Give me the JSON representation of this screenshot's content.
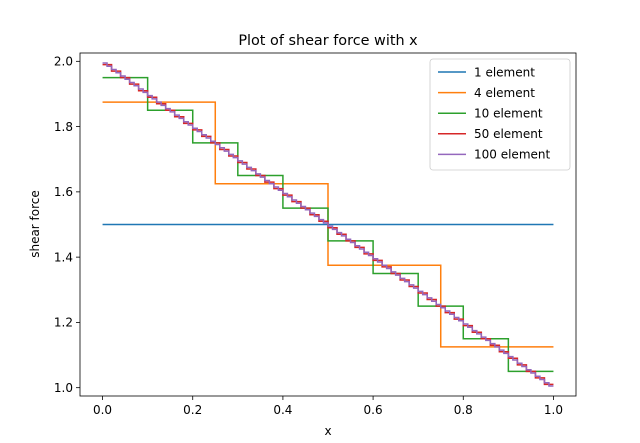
{
  "chart_data": {
    "type": "line",
    "title": "Plot of shear force with x",
    "xlabel": "x",
    "ylabel": "shear force",
    "xlim": [
      -0.05,
      1.05
    ],
    "ylim": [
      0.9745,
      2.0255
    ],
    "xticks": [
      0.0,
      0.2,
      0.4,
      0.6,
      0.8,
      1.0
    ],
    "xtick_labels": [
      "0.0",
      "0.2",
      "0.4",
      "0.6",
      "0.8",
      "1.0"
    ],
    "yticks": [
      1.0,
      1.2,
      1.4,
      1.6,
      1.8,
      2.0
    ],
    "ytick_labels": [
      "1.0",
      "1.2",
      "1.4",
      "1.6",
      "1.8",
      "2.0"
    ],
    "grid": false,
    "legend_position": "upper right",
    "series": [
      {
        "name": "1 element",
        "color": "#1f77b4",
        "x": [
          0.0,
          1.0
        ],
        "y": [
          1.5,
          1.5
        ]
      },
      {
        "name": "4 element",
        "color": "#ff7f0e",
        "x": [
          0.0,
          0.25,
          0.25,
          0.5,
          0.5,
          0.75,
          0.75,
          1.0
        ],
        "y": [
          1.875,
          1.875,
          1.625,
          1.625,
          1.375,
          1.375,
          1.125,
          1.125
        ]
      },
      {
        "name": "10 element",
        "color": "#2ca02c",
        "x": [
          0.0,
          0.1,
          0.1,
          0.2,
          0.2,
          0.3,
          0.3,
          0.4,
          0.4,
          0.5,
          0.5,
          0.6,
          0.6,
          0.7,
          0.7,
          0.8,
          0.8,
          0.9,
          0.9,
          1.0
        ],
        "y": [
          1.95,
          1.95,
          1.85,
          1.85,
          1.75,
          1.75,
          1.65,
          1.65,
          1.55,
          1.55,
          1.45,
          1.45,
          1.35,
          1.35,
          1.25,
          1.25,
          1.15,
          1.15,
          1.05,
          1.05
        ]
      },
      {
        "name": "50 element",
        "color": "#d62728",
        "x": [
          0.0,
          0.02,
          0.02,
          0.04,
          0.04,
          0.06,
          0.06,
          0.08,
          0.08,
          0.1,
          0.1,
          0.12,
          0.12,
          0.14,
          0.14,
          0.16,
          0.16,
          0.18,
          0.18,
          0.2,
          0.2,
          0.22,
          0.22,
          0.24,
          0.24,
          0.26,
          0.26,
          0.28,
          0.28,
          0.3,
          0.3,
          0.32,
          0.32,
          0.34,
          0.34,
          0.36,
          0.36,
          0.38,
          0.38,
          0.4,
          0.4,
          0.42,
          0.42,
          0.44,
          0.44,
          0.46,
          0.46,
          0.48,
          0.48,
          0.5,
          0.5,
          0.52,
          0.52,
          0.54,
          0.54,
          0.56,
          0.56,
          0.58,
          0.58,
          0.6,
          0.6,
          0.62,
          0.62,
          0.64,
          0.64,
          0.66,
          0.66,
          0.68,
          0.68,
          0.7,
          0.7,
          0.72,
          0.72,
          0.74,
          0.74,
          0.76,
          0.76,
          0.78,
          0.78,
          0.8,
          0.8,
          0.82,
          0.82,
          0.84,
          0.84,
          0.86,
          0.86,
          0.88,
          0.88,
          0.9,
          0.9,
          0.92,
          0.92,
          0.94,
          0.94,
          0.96,
          0.96,
          0.98,
          0.98,
          1.0
        ],
        "y": [
          1.99,
          1.99,
          1.97,
          1.97,
          1.95,
          1.95,
          1.93,
          1.93,
          1.91,
          1.91,
          1.89,
          1.89,
          1.87,
          1.87,
          1.85,
          1.85,
          1.83,
          1.83,
          1.81,
          1.81,
          1.79,
          1.79,
          1.77,
          1.77,
          1.75,
          1.75,
          1.73,
          1.73,
          1.71,
          1.71,
          1.69,
          1.69,
          1.67,
          1.67,
          1.65,
          1.65,
          1.63,
          1.63,
          1.61,
          1.61,
          1.59,
          1.59,
          1.57,
          1.57,
          1.55,
          1.55,
          1.53,
          1.53,
          1.51,
          1.51,
          1.49,
          1.49,
          1.47,
          1.47,
          1.45,
          1.45,
          1.43,
          1.43,
          1.41,
          1.41,
          1.39,
          1.39,
          1.37,
          1.37,
          1.35,
          1.35,
          1.33,
          1.33,
          1.31,
          1.31,
          1.29,
          1.29,
          1.27,
          1.27,
          1.25,
          1.25,
          1.23,
          1.23,
          1.21,
          1.21,
          1.19,
          1.19,
          1.17,
          1.17,
          1.15,
          1.15,
          1.13,
          1.13,
          1.11,
          1.11,
          1.09,
          1.09,
          1.07,
          1.07,
          1.05,
          1.05,
          1.03,
          1.03,
          1.01,
          1.01
        ]
      },
      {
        "name": "100 element",
        "color": "#9467bd",
        "x": [
          0.0,
          0.01,
          0.01,
          0.02,
          0.02,
          0.03,
          0.03,
          0.04,
          0.04,
          0.05,
          0.05,
          0.06,
          0.06,
          0.07,
          0.07,
          0.08,
          0.08,
          0.09,
          0.09,
          0.1,
          0.1,
          0.11,
          0.11,
          0.12,
          0.12,
          0.13,
          0.13,
          0.14,
          0.14,
          0.15,
          0.15,
          0.16,
          0.16,
          0.17,
          0.17,
          0.18,
          0.18,
          0.19,
          0.19,
          0.2,
          0.2,
          0.21,
          0.21,
          0.22,
          0.22,
          0.23,
          0.23,
          0.24,
          0.24,
          0.25,
          0.25,
          0.26,
          0.26,
          0.27,
          0.27,
          0.28,
          0.28,
          0.29,
          0.29,
          0.3,
          0.3,
          0.31,
          0.31,
          0.32,
          0.32,
          0.33,
          0.33,
          0.34,
          0.34,
          0.35,
          0.35,
          0.36,
          0.36,
          0.37,
          0.37,
          0.38,
          0.38,
          0.39,
          0.39,
          0.4,
          0.4,
          0.41,
          0.41,
          0.42,
          0.42,
          0.43,
          0.43,
          0.44,
          0.44,
          0.45,
          0.45,
          0.46,
          0.46,
          0.47,
          0.47,
          0.48,
          0.48,
          0.49,
          0.49,
          0.5,
          0.5,
          0.51,
          0.51,
          0.52,
          0.52,
          0.53,
          0.53,
          0.54,
          0.54,
          0.55,
          0.55,
          0.56,
          0.56,
          0.57,
          0.57,
          0.58,
          0.58,
          0.59,
          0.59,
          0.6,
          0.6,
          0.61,
          0.61,
          0.62,
          0.62,
          0.63,
          0.63,
          0.64,
          0.64,
          0.65,
          0.65,
          0.66,
          0.66,
          0.67,
          0.67,
          0.68,
          0.68,
          0.69,
          0.69,
          0.7,
          0.7,
          0.71,
          0.71,
          0.72,
          0.72,
          0.73,
          0.73,
          0.74,
          0.74,
          0.75,
          0.75,
          0.76,
          0.76,
          0.77,
          0.77,
          0.78,
          0.78,
          0.79,
          0.79,
          0.8,
          0.8,
          0.81,
          0.81,
          0.82,
          0.82,
          0.83,
          0.83,
          0.84,
          0.84,
          0.85,
          0.85,
          0.86,
          0.86,
          0.87,
          0.87,
          0.88,
          0.88,
          0.89,
          0.89,
          0.9,
          0.9,
          0.91,
          0.91,
          0.92,
          0.92,
          0.93,
          0.93,
          0.94,
          0.94,
          0.95,
          0.95,
          0.96,
          0.96,
          0.97,
          0.97,
          0.98,
          0.98,
          0.99,
          0.99,
          1.0
        ],
        "y": [
          1.995,
          1.995,
          1.985,
          1.985,
          1.975,
          1.975,
          1.965,
          1.965,
          1.955,
          1.955,
          1.945,
          1.945,
          1.935,
          1.935,
          1.925,
          1.925,
          1.915,
          1.915,
          1.905,
          1.905,
          1.895,
          1.895,
          1.885,
          1.885,
          1.875,
          1.875,
          1.865,
          1.865,
          1.855,
          1.855,
          1.845,
          1.845,
          1.835,
          1.835,
          1.825,
          1.825,
          1.815,
          1.815,
          1.805,
          1.805,
          1.795,
          1.795,
          1.785,
          1.785,
          1.775,
          1.775,
          1.765,
          1.765,
          1.755,
          1.755,
          1.745,
          1.745,
          1.735,
          1.735,
          1.725,
          1.725,
          1.715,
          1.715,
          1.705,
          1.705,
          1.695,
          1.695,
          1.685,
          1.685,
          1.675,
          1.675,
          1.665,
          1.665,
          1.655,
          1.655,
          1.645,
          1.645,
          1.635,
          1.635,
          1.625,
          1.625,
          1.615,
          1.615,
          1.605,
          1.605,
          1.595,
          1.595,
          1.585,
          1.585,
          1.575,
          1.575,
          1.565,
          1.565,
          1.555,
          1.555,
          1.545,
          1.545,
          1.535,
          1.535,
          1.525,
          1.525,
          1.515,
          1.515,
          1.505,
          1.505,
          1.495,
          1.495,
          1.485,
          1.485,
          1.475,
          1.475,
          1.465,
          1.465,
          1.455,
          1.455,
          1.445,
          1.445,
          1.435,
          1.435,
          1.425,
          1.425,
          1.415,
          1.415,
          1.405,
          1.405,
          1.395,
          1.395,
          1.385,
          1.385,
          1.375,
          1.375,
          1.365,
          1.365,
          1.355,
          1.355,
          1.345,
          1.345,
          1.335,
          1.335,
          1.325,
          1.325,
          1.315,
          1.315,
          1.305,
          1.305,
          1.295,
          1.295,
          1.285,
          1.285,
          1.275,
          1.275,
          1.265,
          1.265,
          1.255,
          1.255,
          1.245,
          1.245,
          1.235,
          1.235,
          1.225,
          1.225,
          1.215,
          1.215,
          1.205,
          1.205,
          1.195,
          1.195,
          1.185,
          1.185,
          1.175,
          1.175,
          1.165,
          1.165,
          1.155,
          1.155,
          1.145,
          1.145,
          1.135,
          1.135,
          1.125,
          1.125,
          1.115,
          1.115,
          1.105,
          1.105,
          1.095,
          1.095,
          1.085,
          1.085,
          1.075,
          1.075,
          1.065,
          1.065,
          1.055,
          1.055,
          1.045,
          1.045,
          1.035,
          1.035,
          1.025,
          1.025,
          1.015,
          1.015,
          1.005,
          1.005
        ]
      }
    ]
  }
}
